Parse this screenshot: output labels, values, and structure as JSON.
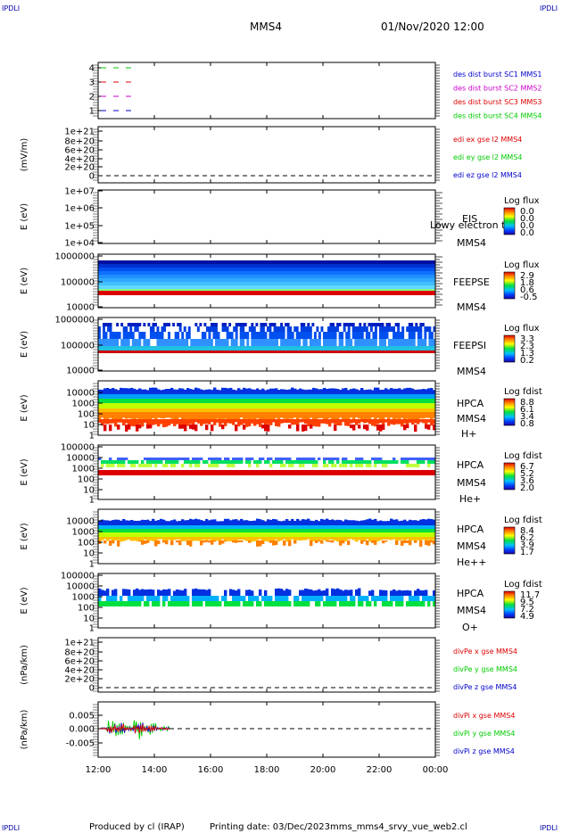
{
  "corner_label": "IPDLI",
  "header": {
    "spacecraft": "MMS4",
    "datetime": "01/Nov/2020 12:00"
  },
  "footer": {
    "produced_by": "Produced by cl (IRAP)",
    "printing_date": "Printing date: 03/Dec/2023",
    "filename": "mms_mms4_srvy_vue_web2.cl"
  },
  "x_ticks": [
    "12:00",
    "14:00",
    "16:00",
    "18:00",
    "20:00",
    "22:00",
    "00:00"
  ],
  "colors": {
    "red": "#dd0000",
    "green": "#00cc00",
    "blue": "#0000cc",
    "magenta": "#cc00cc"
  },
  "chart_data": [
    {
      "type": "line",
      "panel": "burst",
      "ylim": [
        0.5,
        4.5
      ],
      "yticks": [
        "4",
        "3",
        "2",
        "1"
      ],
      "series": [
        {
          "name": "des dist burst SC1 MMS1",
          "color": "#0000cc"
        },
        {
          "name": "des dist burst SC2 MMS2",
          "color": "#cc00cc"
        },
        {
          "name": "des dist burst SC3 MMS3",
          "color": "#dd0000"
        },
        {
          "name": "des dist burst SC4 MMS4",
          "color": "#00cc00"
        }
      ]
    },
    {
      "type": "line",
      "panel": "edi",
      "ylabel": "(mV/m)",
      "ylim": [
        0,
        1e+21
      ],
      "yticks": [
        "1e+21",
        "8e+20",
        "6e+20",
        "4e+20",
        "2e+20",
        "0"
      ],
      "series": [
        {
          "name": "edi ex gse l2 MMS4",
          "color": "#dd0000"
        },
        {
          "name": "edi ey gse l2 MMS4",
          "color": "#00cc00"
        },
        {
          "name": "edi ez gse l2 MMS4",
          "color": "#0000cc"
        }
      ]
    },
    {
      "type": "heatmap",
      "panel": "eis",
      "ylabel": "E (eV)",
      "yticks": [
        "1e+07",
        "1e+06",
        "1e+05",
        "1e+04"
      ],
      "labels": [
        "EIS",
        "Lowy electron to",
        "MMS4"
      ],
      "cbar_title": "Log flux",
      "cbar_ticks": [
        "0.0",
        "0.0",
        "0.0",
        "0.0"
      ]
    },
    {
      "type": "heatmap",
      "panel": "feepse",
      "ylabel": "E (eV)",
      "yticks": [
        "1000000",
        "100000",
        "10000"
      ],
      "labels": [
        "FEEPSE",
        "MMS4"
      ],
      "cbar_title": "Log flux",
      "cbar_ticks": [
        "2.9",
        "1.8",
        "0.6",
        "-0.5"
      ]
    },
    {
      "type": "heatmap",
      "panel": "feepsi",
      "ylabel": "E (eV)",
      "yticks": [
        "1000000",
        "100000",
        "10000"
      ],
      "labels": [
        "FEEPSI",
        "MMS4"
      ],
      "cbar_title": "Log flux",
      "cbar_ticks": [
        "3.3",
        "2.3",
        "1.3",
        "0.2"
      ]
    },
    {
      "type": "heatmap",
      "panel": "hpca_h",
      "ylabel": "E (eV)",
      "yticks": [
        "10000",
        "1000",
        "100",
        "10",
        "1"
      ],
      "labels": [
        "HPCA",
        "MMS4",
        "H+"
      ],
      "cbar_title": "Log fdist",
      "cbar_ticks": [
        "8.8",
        "6.1",
        "3.4",
        "0.8"
      ]
    },
    {
      "type": "heatmap",
      "panel": "hpca_he",
      "ylabel": "E (eV)",
      "yticks": [
        "100000",
        "10000",
        "1000",
        "100",
        "10",
        "1"
      ],
      "labels": [
        "HPCA",
        "MMS4",
        "He+"
      ],
      "cbar_title": "Log fdist",
      "cbar_ticks": [
        "6.7",
        "5.2",
        "3.6",
        "2.0"
      ]
    },
    {
      "type": "heatmap",
      "panel": "hpca_hepp",
      "ylabel": "E (eV)",
      "yticks": [
        "10000",
        "1000",
        "100",
        "10",
        "1"
      ],
      "labels": [
        "HPCA",
        "MMS4",
        "He++"
      ],
      "cbar_title": "Log fdist",
      "cbar_ticks": [
        "8.4",
        "6.2",
        "3.9",
        "1.7"
      ]
    },
    {
      "type": "heatmap",
      "panel": "hpca_o",
      "ylabel": "E (eV)",
      "yticks": [
        "100000",
        "10000",
        "1000",
        "100",
        "10",
        "1"
      ],
      "labels": [
        "HPCA",
        "MMS4",
        "O+"
      ],
      "cbar_title": "Log fdist",
      "cbar_ticks": [
        "11.7",
        "9.5",
        "7.2",
        "4.9"
      ]
    },
    {
      "type": "line",
      "panel": "divpe",
      "ylabel": "(nPa/km)",
      "ylim": [
        0,
        1e+21
      ],
      "yticks": [
        "1e+21",
        "8e+20",
        "6e+20",
        "4e+20",
        "2e+20",
        "0"
      ],
      "series": [
        {
          "name": "divPe x gse MMS4",
          "color": "#dd0000"
        },
        {
          "name": "divPe y gse MMS4",
          "color": "#00cc00"
        },
        {
          "name": "divPe z gse MMS4",
          "color": "#0000cc"
        }
      ]
    },
    {
      "type": "line",
      "panel": "divpi",
      "ylabel": "(nPa/km)",
      "ylim": [
        -0.008,
        0.008
      ],
      "yticks": [
        "0.005",
        "0.000",
        "-0.005"
      ],
      "series": [
        {
          "name": "divPi x gse MMS4",
          "color": "#dd0000"
        },
        {
          "name": "divPi y gse MMS4",
          "color": "#00cc00"
        },
        {
          "name": "divPi z gse MMS4",
          "color": "#0000cc"
        }
      ]
    }
  ]
}
